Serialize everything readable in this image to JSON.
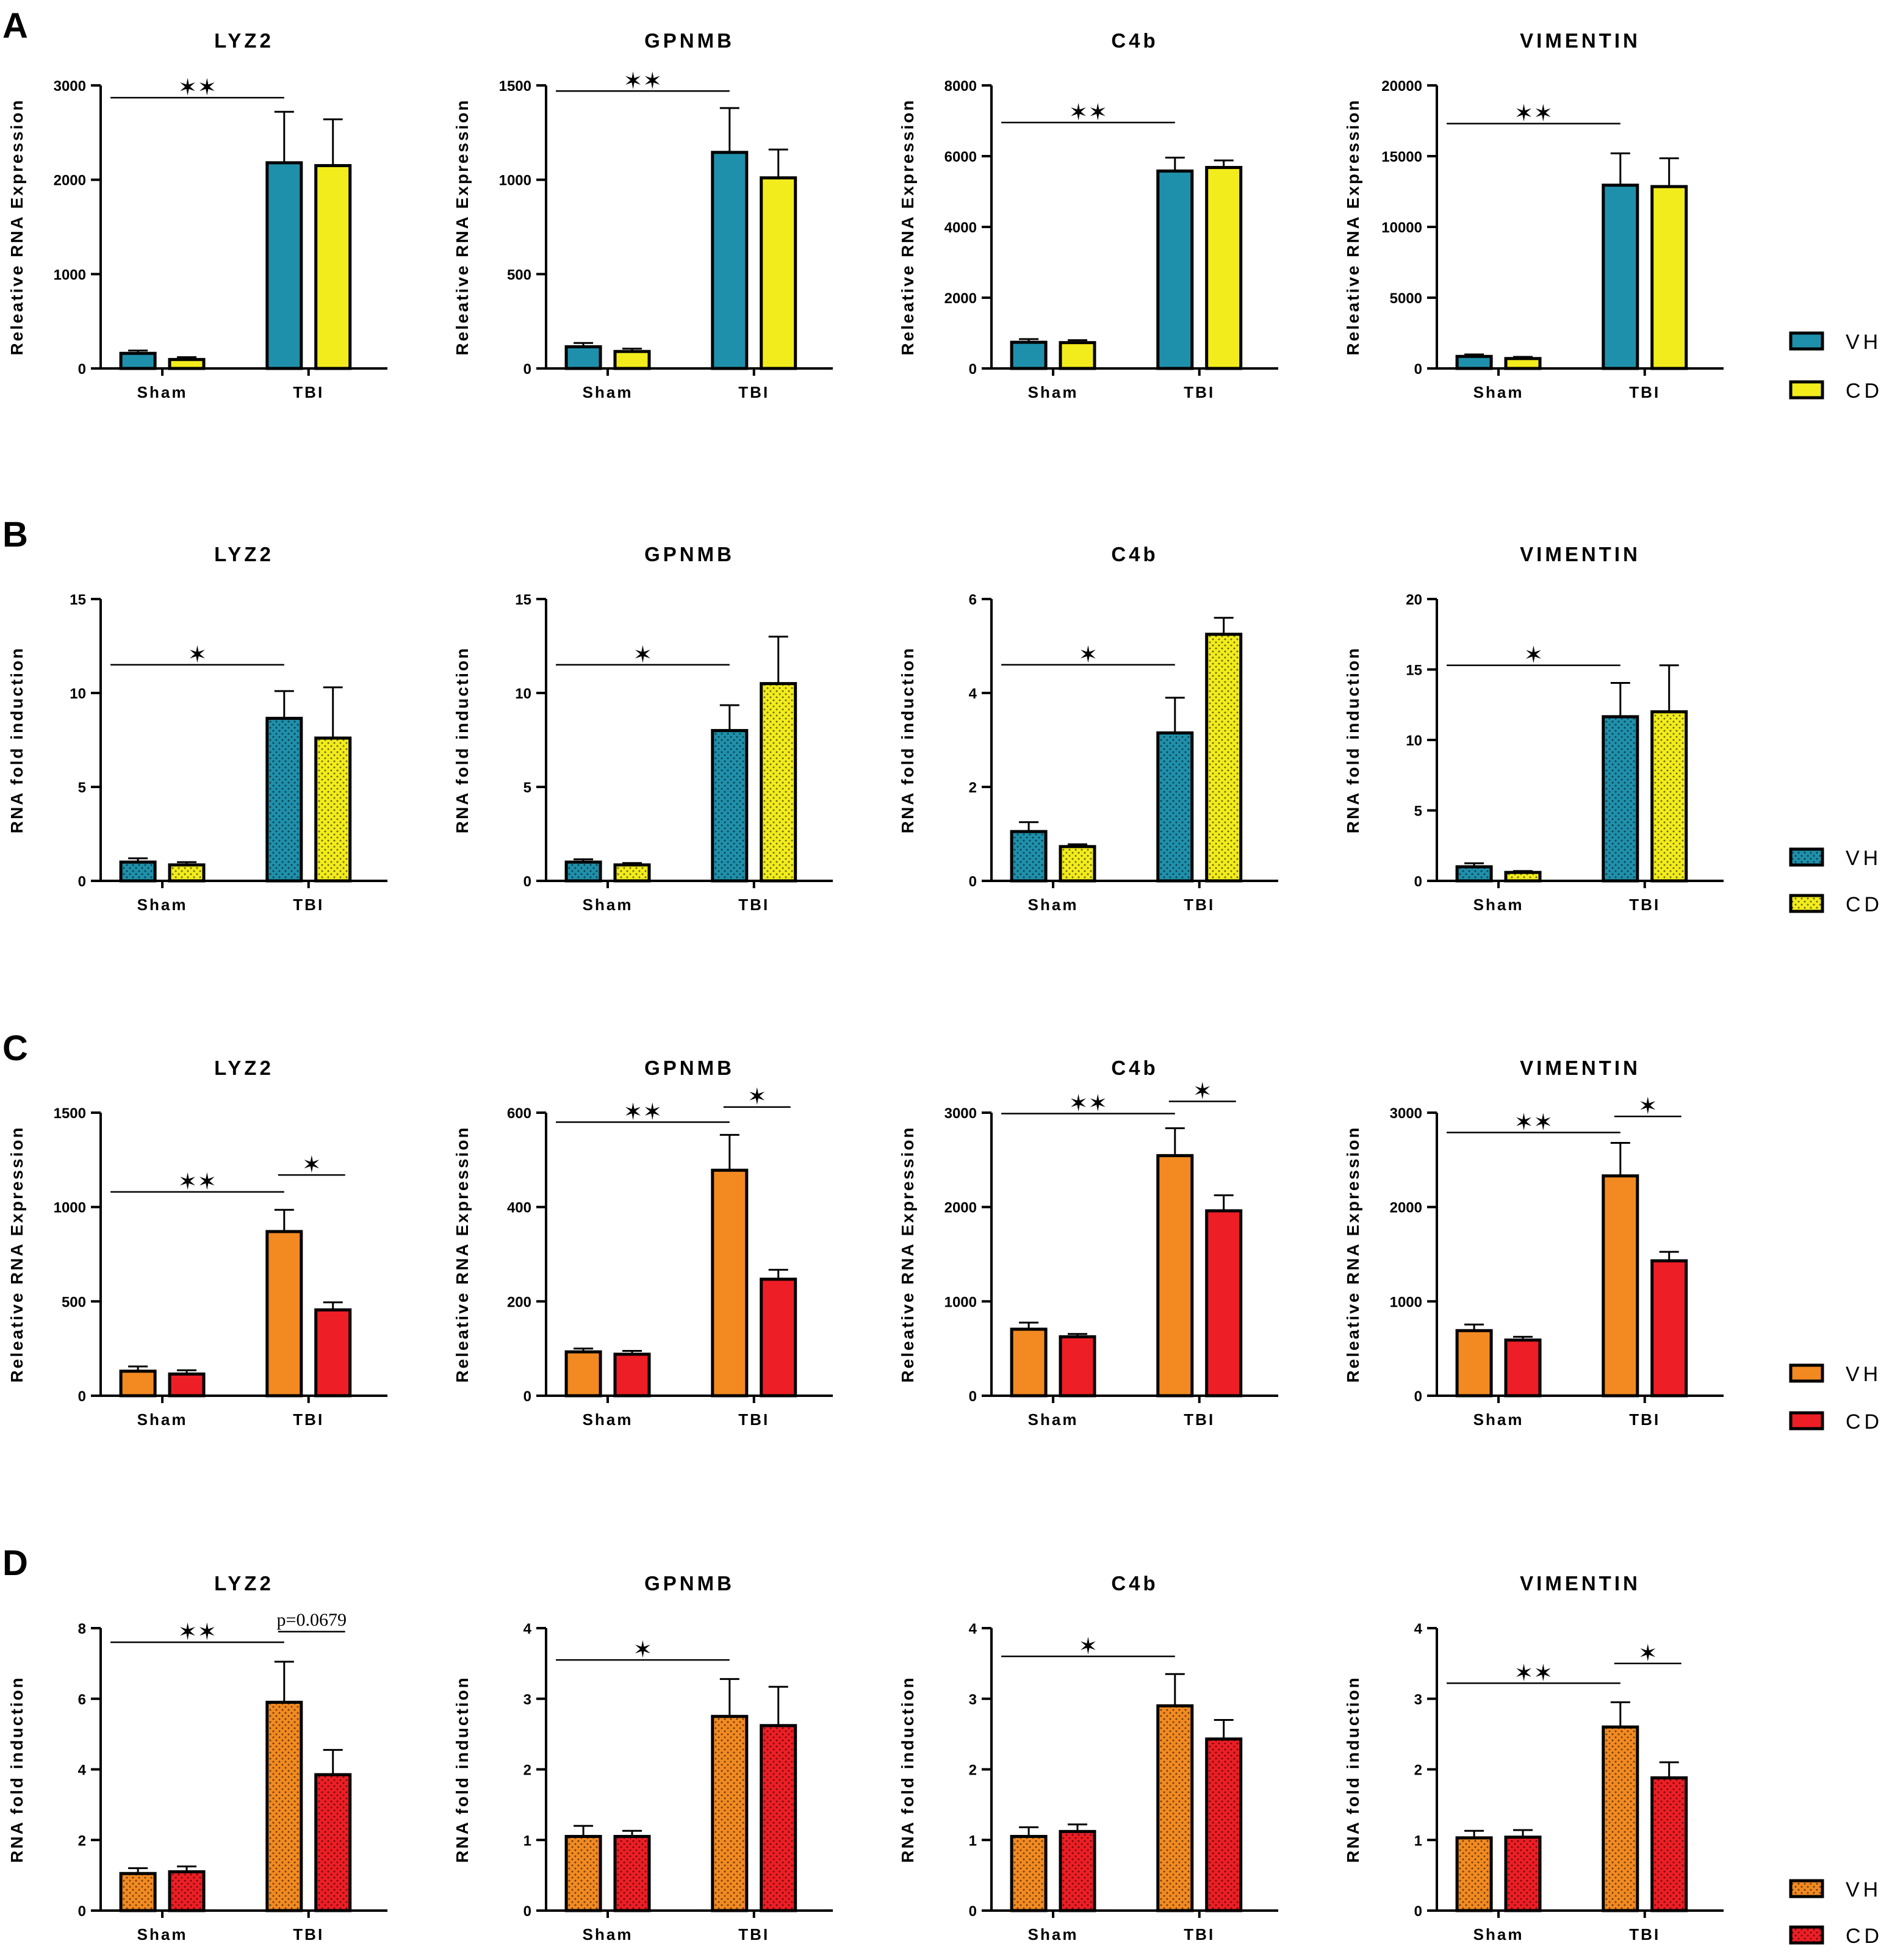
{
  "colors": {
    "teal": "#1f90ab",
    "yellow": "#f2ec1c",
    "orange": "#f28a21",
    "red": "#ed1e25"
  },
  "panels": [
    {
      "letter": "A",
      "legend": {
        "labels": [
          "VH",
          "CD"
        ],
        "colors": [
          "#1f90ab",
          "#f2ec1c"
        ],
        "dotted": false
      }
    },
    {
      "letter": "B",
      "legend": {
        "labels": [
          "VH",
          "CD"
        ],
        "colors": [
          "#1f90ab",
          "#f2ec1c"
        ],
        "dotted": true
      }
    },
    {
      "letter": "C",
      "legend": {
        "labels": [
          "VH",
          "CD"
        ],
        "colors": [
          "#f28a21",
          "#ed1e25"
        ],
        "dotted": false
      }
    },
    {
      "letter": "D",
      "legend": {
        "labels": [
          "VH",
          "CD"
        ],
        "colors": [
          "#f28a21",
          "#ed1e25"
        ],
        "dotted": true
      }
    }
  ],
  "chart_data": [
    {
      "panel": "A",
      "type": "bar",
      "title": "LYZ2",
      "ylabel": "Releative  RNA Expression",
      "categories": [
        "Sham",
        "TBI"
      ],
      "ylim": [
        0,
        3000
      ],
      "yticks": [
        0,
        1000,
        2000,
        3000
      ],
      "series": [
        {
          "name": "VH",
          "values": [
            160,
            2180
          ],
          "errors": [
            30,
            540
          ]
        },
        {
          "name": "CD",
          "values": [
            95,
            2150
          ],
          "errors": [
            25,
            490
          ]
        }
      ],
      "annotations": [
        {
          "text": "**",
          "from": 0,
          "to": 2,
          "y": 2870
        }
      ]
    },
    {
      "panel": "A",
      "type": "bar",
      "title": "GPNMB",
      "ylabel": "Releative  RNA Expression",
      "categories": [
        "Sham",
        "TBI"
      ],
      "ylim": [
        0,
        1500
      ],
      "yticks": [
        0,
        500,
        1000,
        1500
      ],
      "series": [
        {
          "name": "VH",
          "values": [
            115,
            1145
          ],
          "errors": [
            20,
            235
          ]
        },
        {
          "name": "CD",
          "values": [
            90,
            1010
          ],
          "errors": [
            15,
            150
          ]
        }
      ],
      "annotations": [
        {
          "text": "**",
          "from": 0,
          "to": 2,
          "y": 1470
        }
      ]
    },
    {
      "panel": "A",
      "type": "bar",
      "title": "C4b",
      "ylabel": "Releative  RNA Expression",
      "categories": [
        "Sham",
        "TBI"
      ],
      "ylim": [
        0,
        8000
      ],
      "yticks": [
        0,
        2000,
        4000,
        6000,
        8000
      ],
      "series": [
        {
          "name": "VH",
          "values": [
            740,
            5580
          ],
          "errors": [
            90,
            380
          ]
        },
        {
          "name": "CD",
          "values": [
            730,
            5680
          ],
          "errors": [
            70,
            200
          ]
        }
      ],
      "annotations": [
        {
          "text": "**",
          "from": 0,
          "to": 2,
          "y": 6950
        }
      ]
    },
    {
      "panel": "A",
      "type": "bar",
      "title": "VIMENTIN",
      "ylabel": "Releative  RNA Expression",
      "categories": [
        "Sham",
        "TBI"
      ],
      "ylim": [
        0,
        20000
      ],
      "yticks": [
        0,
        5000,
        10000,
        15000,
        20000
      ],
      "series": [
        {
          "name": "VH",
          "values": [
            850,
            12950
          ],
          "errors": [
            140,
            2250
          ]
        },
        {
          "name": "CD",
          "values": [
            700,
            12850
          ],
          "errors": [
            120,
            2000
          ]
        }
      ],
      "annotations": [
        {
          "text": "**",
          "from": 0,
          "to": 2,
          "y": 17300
        }
      ]
    },
    {
      "panel": "B",
      "type": "bar",
      "title": "LYZ2",
      "ylabel": "RNA fold induction",
      "categories": [
        "Sham",
        "TBI"
      ],
      "ylim": [
        0,
        15
      ],
      "yticks": [
        0,
        5,
        10,
        15
      ],
      "series": [
        {
          "name": "VH",
          "values": [
            1.0,
            8.65
          ],
          "errors": [
            0.2,
            1.45
          ]
        },
        {
          "name": "CD",
          "values": [
            0.85,
            7.6
          ],
          "errors": [
            0.15,
            2.7
          ]
        }
      ],
      "annotations": [
        {
          "text": "*",
          "from": 0,
          "to": 2,
          "y": 11.5
        }
      ]
    },
    {
      "panel": "B",
      "type": "bar",
      "title": "GPNMB",
      "ylabel": "RNA fold induction",
      "categories": [
        "Sham",
        "TBI"
      ],
      "ylim": [
        0,
        15
      ],
      "yticks": [
        0,
        5,
        10,
        15
      ],
      "series": [
        {
          "name": "VH",
          "values": [
            1.0,
            8.0
          ],
          "errors": [
            0.15,
            1.35
          ]
        },
        {
          "name": "CD",
          "values": [
            0.85,
            10.5
          ],
          "errors": [
            0.1,
            2.5
          ]
        }
      ],
      "annotations": [
        {
          "text": "*",
          "from": 0,
          "to": 2,
          "y": 11.5
        }
      ]
    },
    {
      "panel": "B",
      "type": "bar",
      "title": "C4b",
      "ylabel": "RNA fold induction",
      "categories": [
        "Sham",
        "TBI"
      ],
      "ylim": [
        0,
        6
      ],
      "yticks": [
        0,
        2,
        4,
        6
      ],
      "series": [
        {
          "name": "VH",
          "values": [
            1.05,
            3.15
          ],
          "errors": [
            0.2,
            0.75
          ]
        },
        {
          "name": "CD",
          "values": [
            0.73,
            5.25
          ],
          "errors": [
            0.05,
            0.35
          ]
        }
      ],
      "annotations": [
        {
          "text": "*",
          "from": 0,
          "to": 2,
          "y": 4.6
        }
      ]
    },
    {
      "panel": "B",
      "type": "bar",
      "title": "VIMENTIN",
      "ylabel": "RNA fold induction",
      "categories": [
        "Sham",
        "TBI"
      ],
      "ylim": [
        0,
        20
      ],
      "yticks": [
        0,
        5,
        10,
        15,
        20
      ],
      "series": [
        {
          "name": "VH",
          "values": [
            1.0,
            11.65
          ],
          "errors": [
            0.25,
            2.4
          ]
        },
        {
          "name": "CD",
          "values": [
            0.6,
            12.0
          ],
          "errors": [
            0.1,
            3.3
          ]
        }
      ],
      "annotations": [
        {
          "text": "*",
          "from": 0,
          "to": 2,
          "y": 15.3
        }
      ]
    },
    {
      "panel": "C",
      "type": "bar",
      "title": "LYZ2",
      "ylabel": "Releative  RNA Expression",
      "categories": [
        "Sham",
        "TBI"
      ],
      "ylim": [
        0,
        1500
      ],
      "yticks": [
        0,
        500,
        1000,
        1500
      ],
      "series": [
        {
          "name": "VH",
          "values": [
            130,
            870
          ],
          "errors": [
            25,
            115
          ]
        },
        {
          "name": "CD",
          "values": [
            115,
            455
          ],
          "errors": [
            20,
            40
          ]
        }
      ],
      "annotations": [
        {
          "text": "**",
          "from": 0,
          "to": 2,
          "y": 1080
        },
        {
          "text": "*",
          "from": 2,
          "to": 3,
          "y": 1170
        }
      ]
    },
    {
      "panel": "C",
      "type": "bar",
      "title": "GPNMB",
      "ylabel": "Releative  RNA Expression",
      "categories": [
        "Sham",
        "TBI"
      ],
      "ylim": [
        0,
        600
      ],
      "yticks": [
        0,
        200,
        400,
        600
      ],
      "series": [
        {
          "name": "VH",
          "values": [
            93,
            478
          ],
          "errors": [
            7,
            75
          ]
        },
        {
          "name": "CD",
          "values": [
            88,
            247
          ],
          "errors": [
            7,
            20
          ]
        }
      ],
      "annotations": [
        {
          "text": "**",
          "from": 0,
          "to": 2,
          "y": 580
        },
        {
          "text": "*",
          "from": 2,
          "to": 3,
          "y": 612
        }
      ]
    },
    {
      "panel": "C",
      "type": "bar",
      "title": "C4b",
      "ylabel": "Releative  RNA Expression",
      "categories": [
        "Sham",
        "TBI"
      ],
      "ylim": [
        0,
        3000
      ],
      "yticks": [
        0,
        1000,
        2000,
        3000
      ],
      "series": [
        {
          "name": "VH",
          "values": [
            705,
            2545
          ],
          "errors": [
            70,
            290
          ]
        },
        {
          "name": "CD",
          "values": [
            625,
            1960
          ],
          "errors": [
            30,
            165
          ]
        }
      ],
      "annotations": [
        {
          "text": "**",
          "from": 0,
          "to": 2,
          "y": 2990
        },
        {
          "text": "*",
          "from": 2,
          "to": 3,
          "y": 3120
        }
      ]
    },
    {
      "panel": "C",
      "type": "bar",
      "title": "VIMENTIN",
      "ylabel": "Releative  RNA Expression",
      "categories": [
        "Sham",
        "TBI"
      ],
      "ylim": [
        0,
        3000
      ],
      "yticks": [
        0,
        1000,
        2000,
        3000
      ],
      "series": [
        {
          "name": "VH",
          "values": [
            690,
            2330
          ],
          "errors": [
            65,
            350
          ]
        },
        {
          "name": "CD",
          "values": [
            590,
            1430
          ],
          "errors": [
            35,
            95
          ]
        }
      ],
      "annotations": [
        {
          "text": "**",
          "from": 0,
          "to": 2,
          "y": 2790
        },
        {
          "text": "*",
          "from": 2,
          "to": 3,
          "y": 2960
        }
      ]
    },
    {
      "panel": "D",
      "type": "bar",
      "title": "LYZ2",
      "ylabel": "RNA fold induction",
      "categories": [
        "Sham",
        "TBI"
      ],
      "ylim": [
        0,
        8
      ],
      "yticks": [
        0,
        2,
        4,
        6,
        8
      ],
      "series": [
        {
          "name": "VH",
          "values": [
            1.05,
            5.9
          ],
          "errors": [
            0.15,
            1.15
          ]
        },
        {
          "name": "CD",
          "values": [
            1.1,
            3.85
          ],
          "errors": [
            0.15,
            0.7
          ]
        }
      ],
      "annotations": [
        {
          "text": "**",
          "from": 0,
          "to": 2,
          "y": 7.6
        },
        {
          "text": "p=0.0679",
          "from": 2,
          "to": 3,
          "y": 7.9
        }
      ]
    },
    {
      "panel": "D",
      "type": "bar",
      "title": "GPNMB",
      "ylabel": "RNA fold induction",
      "categories": [
        "Sham",
        "TBI"
      ],
      "ylim": [
        0,
        4
      ],
      "yticks": [
        0,
        1,
        2,
        3,
        4
      ],
      "series": [
        {
          "name": "VH",
          "values": [
            1.05,
            2.75
          ],
          "errors": [
            0.15,
            0.53
          ]
        },
        {
          "name": "CD",
          "values": [
            1.05,
            2.62
          ],
          "errors": [
            0.08,
            0.55
          ]
        }
      ],
      "annotations": [
        {
          "text": "*",
          "from": 0,
          "to": 2,
          "y": 3.55
        }
      ]
    },
    {
      "panel": "D",
      "type": "bar",
      "title": "C4b",
      "ylabel": "RNA fold induction",
      "categories": [
        "Sham",
        "TBI"
      ],
      "ylim": [
        0,
        4
      ],
      "yticks": [
        0,
        1,
        2,
        3,
        4
      ],
      "series": [
        {
          "name": "VH",
          "values": [
            1.05,
            2.9
          ],
          "errors": [
            0.13,
            0.45
          ]
        },
        {
          "name": "CD",
          "values": [
            1.12,
            2.43
          ],
          "errors": [
            0.1,
            0.27
          ]
        }
      ],
      "annotations": [
        {
          "text": "*",
          "from": 0,
          "to": 2,
          "y": 3.6
        }
      ]
    },
    {
      "panel": "D",
      "type": "bar",
      "title": "VIMENTIN",
      "ylabel": "RNA fold induction",
      "categories": [
        "Sham",
        "TBI"
      ],
      "ylim": [
        0,
        4
      ],
      "yticks": [
        0,
        1,
        2,
        3,
        4
      ],
      "series": [
        {
          "name": "VH",
          "values": [
            1.03,
            2.6
          ],
          "errors": [
            0.1,
            0.35
          ]
        },
        {
          "name": "CD",
          "values": [
            1.04,
            1.88
          ],
          "errors": [
            0.1,
            0.22
          ]
        }
      ],
      "annotations": [
        {
          "text": "**",
          "from": 0,
          "to": 2,
          "y": 3.22
        },
        {
          "text": "*",
          "from": 2,
          "to": 3,
          "y": 3.5
        }
      ]
    }
  ]
}
